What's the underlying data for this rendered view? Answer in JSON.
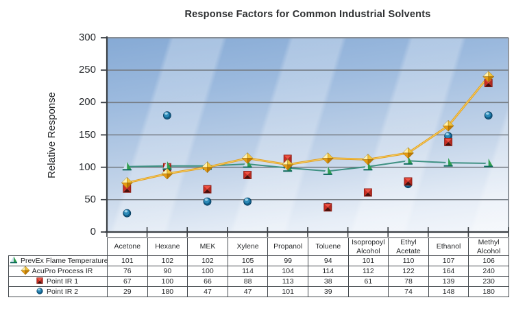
{
  "chart_data": {
    "type": "line",
    "title": "Response Factors for Common Industrial Solvents",
    "ylabel": "Relative Response",
    "xlabel": "",
    "ylim": [
      0,
      300
    ],
    "ytick_step": 50,
    "grid": "horizontal",
    "legend_position": "table-left",
    "plot_bg": "blue gradient with diagonal stripes",
    "categories": [
      "Acetone",
      "Hexane",
      "MEK",
      "Xylene",
      "Propanol",
      "Toluene",
      "Isopropoyl Alcohol",
      "Ethyl Acetate",
      "Ethanol",
      "Methyl Alcohol"
    ],
    "series": [
      {
        "name": "PrevEx Flame Temperature",
        "marker": "triangle",
        "marker_color": "#2f9e4e",
        "line": true,
        "line_color": "#3f9183",
        "values": [
          101,
          102,
          102,
          105,
          99,
          94,
          101,
          110,
          107,
          106
        ]
      },
      {
        "name": "AcuPro Process IR",
        "marker": "diamond",
        "marker_color": "#f0b225",
        "line": true,
        "line_color": "#e2a021",
        "values": [
          76,
          90,
          100,
          114,
          104,
          114,
          112,
          122,
          164,
          240
        ]
      },
      {
        "name": "Point IR 1",
        "marker": "square",
        "marker_color": "#d8342a",
        "line": false,
        "line_color": "#d8342a",
        "values": [
          67,
          100,
          66,
          88,
          113,
          38,
          61,
          78,
          139,
          230
        ]
      },
      {
        "name": "Point IR 2",
        "marker": "circle",
        "marker_color": "#1e7fae",
        "line": false,
        "line_color": "#1e7fae",
        "values": [
          29,
          180,
          47,
          47,
          101,
          39,
          null,
          74,
          148,
          180
        ]
      }
    ],
    "colors": {
      "gridline": "#767d85",
      "axis": "#3a3f44",
      "table_border": "#43484d",
      "title_text": "#2d2f31"
    }
  }
}
